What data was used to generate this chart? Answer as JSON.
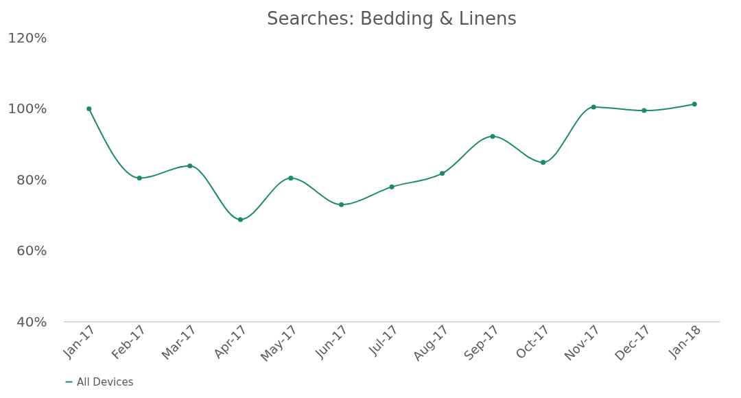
{
  "chart_data": {
    "type": "line",
    "title": "Searches: Bedding & Linens",
    "categories": [
      "Jan-17",
      "Feb-17",
      "Mar-17",
      "Apr-17",
      "May-17",
      "Jun-17",
      "Jul-17",
      "Aug-17",
      "Sep-17",
      "Oct-17",
      "Nov-17",
      "Dec-17",
      "Jan-18"
    ],
    "series": [
      {
        "name": "All Devices",
        "color": "#1a8a6e",
        "values": [
          100,
          80.5,
          83.9,
          68.8,
          80.5,
          73,
          78,
          81.8,
          92.2,
          84.9,
          100.5,
          99.5,
          101.3
        ]
      }
    ],
    "ylim": [
      40,
      120
    ],
    "yticks": [
      {
        "value": 40,
        "label": "40%"
      },
      {
        "value": 60,
        "label": "60%"
      },
      {
        "value": 80,
        "label": "80%"
      },
      {
        "value": 100,
        "label": "100%"
      },
      {
        "value": 120,
        "label": "120%"
      }
    ],
    "grid": false,
    "legend": "bottom",
    "marker": "circle",
    "line_style": "solid"
  }
}
